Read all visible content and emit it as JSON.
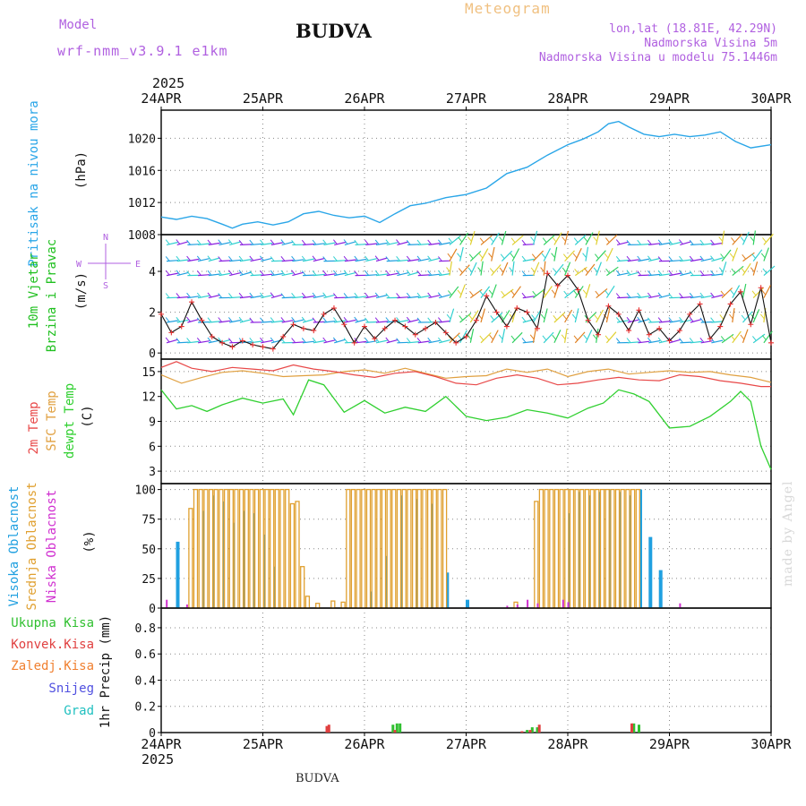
{
  "header": {
    "model_label": "Model",
    "model_name": "wrf-nmm_v3.9.1  e1km",
    "title": "BUDVA",
    "meteogram": "Meteogram",
    "coords": "lon,lat (18.81E, 42.29N)",
    "elevation": "Nadmorska Visina 5m",
    "model_elevation": "Nadmorska Visina u modelu 75.1446m",
    "year_top": "2025",
    "year_bottom": "2025"
  },
  "footer": {
    "station": "BUDVA",
    "credit": "made by Angel"
  },
  "colors": {
    "pressure": "#2aa6e8",
    "t2m": "#e84848",
    "tsfc": "#e0a040",
    "dewpt": "#30d030",
    "cloud_high": "#20a0e0",
    "cloud_mid": "#e0a030",
    "cloud_low": "#d030d0",
    "rain_total": "#30c030",
    "rain_conv": "#e04040",
    "rain_frz": "#f08030",
    "snow": "#5050e0",
    "hail": "#20c0c0",
    "wind_speed": "#111111",
    "wind_marker": "#e83030",
    "wind_labels": "#20c020",
    "compass": "#b060e0"
  },
  "chart_data": [
    {
      "type": "line",
      "panel": "pressure",
      "ylabel": [
        "Pritisak na nivou mora",
        "(hPa)"
      ],
      "x_ticks": [
        "24APR",
        "25APR",
        "26APR",
        "27APR",
        "28APR",
        "29APR",
        "30APR"
      ],
      "y_ticks": [
        1008,
        1012,
        1016,
        1020
      ],
      "ylim": [
        1008,
        1023.5
      ],
      "xlim": [
        0,
        6
      ],
      "grid": true,
      "series": [
        {
          "x": [
            0,
            0.15,
            0.3,
            0.45,
            0.6,
            0.7,
            0.8,
            0.95,
            1.1,
            1.25,
            1.4,
            1.55,
            1.7,
            1.85,
            2.0,
            2.15,
            2.3,
            2.45,
            2.6,
            2.8,
            3.0,
            3.2,
            3.4,
            3.6,
            3.8,
            4.0,
            4.15,
            4.3,
            4.4,
            4.5,
            4.6,
            4.75,
            4.9,
            5.05,
            5.2,
            5.35,
            5.5,
            5.65,
            5.8,
            6.0
          ],
          "y": [
            1010.2,
            1009.9,
            1010.3,
            1010.0,
            1009.3,
            1008.8,
            1009.3,
            1009.6,
            1009.2,
            1009.6,
            1010.6,
            1010.9,
            1010.4,
            1010.1,
            1010.3,
            1009.5,
            1010.6,
            1011.6,
            1011.9,
            1012.6,
            1013.0,
            1013.8,
            1015.6,
            1016.4,
            1017.9,
            1019.2,
            1019.9,
            1020.8,
            1021.8,
            1022.1,
            1021.4,
            1020.5,
            1020.2,
            1020.5,
            1020.2,
            1020.4,
            1020.8,
            1019.6,
            1018.8,
            1019.2
          ]
        }
      ]
    },
    {
      "type": "line",
      "panel": "wind",
      "ylabel": [
        "10m Vjetar",
        "Brzina i Pravac",
        "(m/s)"
      ],
      "compass": [
        "N",
        "S",
        "W",
        "E"
      ],
      "y_ticks": [
        0,
        2,
        4
      ],
      "ylim": [
        -0.3,
        5.8
      ],
      "xlim": [
        0,
        6
      ],
      "grid": true,
      "series": [
        {
          "name": "speed",
          "x": [
            0,
            0.1,
            0.2,
            0.3,
            0.4,
            0.5,
            0.6,
            0.7,
            0.8,
            0.9,
            1.0,
            1.1,
            1.2,
            1.3,
            1.4,
            1.5,
            1.6,
            1.7,
            1.8,
            1.9,
            2.0,
            2.1,
            2.2,
            2.3,
            2.4,
            2.5,
            2.6,
            2.7,
            2.8,
            2.9,
            3.0,
            3.1,
            3.2,
            3.3,
            3.4,
            3.5,
            3.6,
            3.7,
            3.8,
            3.9,
            4.0,
            4.1,
            4.2,
            4.3,
            4.4,
            4.5,
            4.6,
            4.7,
            4.8,
            4.9,
            5.0,
            5.1,
            5.2,
            5.3,
            5.4,
            5.5,
            5.6,
            5.7,
            5.8,
            5.9,
            6.0
          ],
          "y": [
            1.9,
            1.0,
            1.3,
            2.5,
            1.6,
            0.8,
            0.5,
            0.3,
            0.6,
            0.4,
            0.3,
            0.2,
            0.8,
            1.4,
            1.2,
            1.1,
            1.9,
            2.2,
            1.4,
            0.5,
            1.3,
            0.7,
            1.2,
            1.6,
            1.3,
            0.9,
            1.2,
            1.5,
            1.0,
            0.5,
            0.8,
            1.6,
            2.8,
            2.0,
            1.3,
            2.2,
            2.0,
            1.2,
            3.9,
            3.3,
            3.8,
            3.1,
            1.6,
            0.9,
            2.3,
            1.9,
            1.1,
            2.1,
            0.9,
            1.2,
            0.6,
            1.1,
            1.9,
            2.4,
            0.7,
            1.3,
            2.4,
            3.0,
            1.4,
            3.2,
            0.5
          ]
        }
      ],
      "barb_rows": [
        0.5,
        1.5,
        2.7,
        3.8,
        4.5,
        5.3
      ]
    },
    {
      "type": "line",
      "panel": "temperature",
      "ylabel": [
        "2m Temp",
        "SFC Temp",
        "dewpt Temp",
        "(C)"
      ],
      "y_ticks": [
        3,
        6,
        9,
        12,
        15
      ],
      "ylim": [
        1.5,
        16.5
      ],
      "xlim": [
        0,
        6
      ],
      "grid": true,
      "series": [
        {
          "name": "2m Temp",
          "x": [
            0,
            0.15,
            0.3,
            0.5,
            0.7,
            0.9,
            1.1,
            1.3,
            1.5,
            1.7,
            1.9,
            2.1,
            2.3,
            2.5,
            2.7,
            2.9,
            3.1,
            3.3,
            3.5,
            3.7,
            3.9,
            4.1,
            4.3,
            4.5,
            4.7,
            4.9,
            5.1,
            5.3,
            5.5,
            5.7,
            5.9,
            6.0
          ],
          "y": [
            15.5,
            16.2,
            15.4,
            15.0,
            15.5,
            15.3,
            15.1,
            15.8,
            15.3,
            15.0,
            14.6,
            14.3,
            14.8,
            15.0,
            14.4,
            13.6,
            13.4,
            14.2,
            14.6,
            14.2,
            13.4,
            13.6,
            14.0,
            14.3,
            14.0,
            13.9,
            14.6,
            14.4,
            13.9,
            13.6,
            13.2,
            13.2
          ]
        },
        {
          "name": "SFC Temp",
          "x": [
            0,
            0.2,
            0.4,
            0.6,
            0.8,
            1.0,
            1.2,
            1.4,
            1.6,
            1.8,
            2.0,
            2.2,
            2.4,
            2.6,
            2.8,
            3.0,
            3.2,
            3.4,
            3.6,
            3.8,
            4.0,
            4.2,
            4.4,
            4.6,
            4.8,
            5.0,
            5.2,
            5.4,
            5.6,
            5.8,
            6.0
          ],
          "y": [
            14.6,
            13.6,
            14.3,
            14.9,
            15.1,
            14.8,
            14.4,
            14.5,
            14.6,
            15.0,
            15.2,
            14.8,
            15.4,
            14.8,
            14.2,
            14.4,
            14.5,
            15.3,
            14.9,
            15.3,
            14.4,
            15.0,
            15.3,
            14.7,
            14.9,
            15.1,
            14.9,
            15.0,
            14.6,
            14.3,
            13.7
          ]
        },
        {
          "name": "dewpt Temp",
          "x": [
            0,
            0.15,
            0.3,
            0.45,
            0.6,
            0.8,
            1.0,
            1.2,
            1.3,
            1.45,
            1.6,
            1.8,
            2.0,
            2.2,
            2.4,
            2.6,
            2.8,
            3.0,
            3.2,
            3.4,
            3.6,
            3.8,
            4.0,
            4.2,
            4.35,
            4.5,
            4.65,
            4.8,
            5.0,
            5.2,
            5.4,
            5.6,
            5.7,
            5.8,
            5.9,
            6.0
          ],
          "y": [
            12.8,
            10.5,
            10.9,
            10.2,
            11.0,
            11.8,
            11.2,
            11.7,
            9.8,
            14.0,
            13.4,
            10.1,
            11.5,
            10.0,
            10.7,
            10.2,
            12.0,
            9.6,
            9.1,
            9.5,
            10.4,
            10.0,
            9.4,
            10.6,
            11.2,
            12.8,
            12.3,
            11.4,
            8.2,
            8.4,
            9.6,
            11.4,
            12.6,
            11.4,
            6.0,
            3.2
          ]
        }
      ]
    },
    {
      "type": "bar",
      "panel": "cloud",
      "ylabel": [
        "Visoka Oblacnost",
        "Srednja Oblacnost",
        "Niska Oblacnost",
        "(%)"
      ],
      "y_ticks": [
        0,
        25,
        50,
        75,
        100
      ],
      "ylim": [
        0,
        105
      ],
      "xlim": [
        0,
        6
      ],
      "grid": true,
      "series": [
        {
          "name": "Visoka Oblacnost",
          "x": [
            0.15,
            0.4,
            0.5,
            0.6,
            0.7,
            0.8,
            0.9,
            1.0,
            1.1,
            2.05,
            2.2,
            2.35,
            2.5,
            2.65,
            2.8,
            3.0,
            4.0,
            4.1,
            4.2,
            4.3,
            4.4,
            4.5,
            4.6,
            4.7,
            4.8,
            4.9
          ],
          "y": [
            56,
            82,
            95,
            90,
            72,
            82,
            80,
            62,
            35,
            14,
            44,
            95,
            92,
            88,
            30,
            7,
            80,
            98,
            95,
            98,
            100,
            98,
            95,
            100,
            60,
            32
          ]
        },
        {
          "name": "Srednja Oblacnost",
          "x": [
            0.3,
            0.35,
            0.4,
            0.45,
            0.5,
            0.55,
            0.6,
            0.65,
            0.7,
            0.75,
            0.8,
            0.85,
            0.9,
            0.95,
            1.0,
            1.05,
            1.1,
            1.15,
            1.2,
            1.25,
            1.3,
            1.35,
            1.4,
            1.45,
            1.55,
            1.7,
            1.8,
            1.85,
            1.9,
            1.95,
            2.0,
            2.05,
            2.1,
            2.15,
            2.2,
            2.25,
            2.3,
            2.35,
            2.4,
            2.45,
            2.5,
            2.55,
            2.6,
            2.65,
            2.7,
            2.75,
            2.8,
            3.5,
            3.7,
            3.75,
            3.8,
            3.85,
            3.9,
            3.95,
            4.0,
            4.05,
            4.1,
            4.15,
            4.2,
            4.25,
            4.3,
            4.35,
            4.4,
            4.45,
            4.5,
            4.55,
            4.6,
            4.65,
            4.7
          ],
          "y": [
            84,
            100,
            100,
            100,
            100,
            100,
            100,
            100,
            100,
            100,
            100,
            100,
            100,
            100,
            100,
            100,
            100,
            100,
            100,
            100,
            88,
            90,
            35,
            10,
            4,
            6,
            5,
            100,
            100,
            100,
            100,
            100,
            100,
            100,
            100,
            100,
            100,
            100,
            100,
            100,
            100,
            100,
            100,
            100,
            100,
            100,
            100,
            5,
            90,
            100,
            100,
            100,
            100,
            100,
            100,
            100,
            100,
            100,
            100,
            100,
            100,
            100,
            100,
            100,
            100,
            100,
            100,
            100,
            100
          ]
        },
        {
          "name": "Niska Oblacnost",
          "x": [
            0.05,
            0.25,
            3.4,
            3.5,
            3.6,
            3.7,
            3.95,
            4.0,
            5.1
          ],
          "y": [
            7,
            3,
            2,
            3,
            7,
            4,
            7,
            5,
            4
          ]
        }
      ]
    },
    {
      "type": "bar",
      "panel": "precipitation",
      "ylabel": [
        "1hr Precip (mm)"
      ],
      "legend": [
        "Ukupna Kisa",
        "Konvek.Kisa",
        "Zaledj.Kisa",
        "Snijeg",
        "Grad"
      ],
      "x_ticks": [
        "24APR",
        "25APR",
        "26APR",
        "27APR",
        "28APR",
        "29APR",
        "30APR"
      ],
      "y_ticks": [
        0,
        0.2,
        0.4,
        0.6,
        0.8
      ],
      "ylim": [
        0,
        0.95
      ],
      "xlim": [
        0,
        6
      ],
      "grid": true,
      "series": [
        {
          "name": "Ukupna Kisa",
          "x": [
            2.28,
            2.32,
            2.35,
            3.6,
            3.65,
            3.7,
            4.65,
            4.7
          ],
          "y": [
            0.06,
            0.07,
            0.07,
            0.02,
            0.04,
            0.04,
            0.07,
            0.06
          ]
        },
        {
          "name": "Konvek.Kisa",
          "x": [
            1.63,
            1.65,
            2.3,
            3.55,
            3.63,
            3.72,
            4.63
          ],
          "y": [
            0.05,
            0.06,
            0.02,
            0.01,
            0.02,
            0.06,
            0.07
          ]
        }
      ]
    }
  ]
}
